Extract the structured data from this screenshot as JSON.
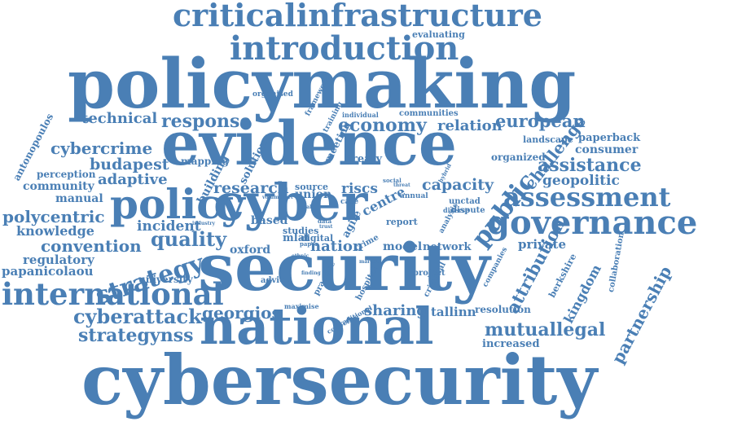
{
  "colors": {
    "word": "#4a7fb5",
    "background": "#ffffff"
  },
  "words": [
    "criticalinfrastructure",
    "introduction",
    "evaluating",
    "policymaking",
    "evidence",
    "security",
    "national",
    "cybersecurity",
    "cyber",
    "policy",
    "governance",
    "assessment",
    "international",
    "strategy",
    "cyberattack",
    "strategynss",
    "georgios",
    "economy",
    "european",
    "response",
    "technical",
    "cybercrime",
    "budapest",
    "adaptive",
    "community",
    "perception",
    "manual",
    "polycentric",
    "knowledge",
    "convention",
    "regulatory",
    "papanicolaou",
    "antonopoulos",
    "research",
    "capacity",
    "public",
    "challenge",
    "assistance",
    "geopolitic",
    "consumer",
    "paperback",
    "landscape",
    "organized",
    "relation",
    "communities",
    "individual",
    "organised",
    "framework",
    "mapping",
    "building",
    "solution",
    "meeting",
    "training",
    "treaty",
    "incident",
    "quality",
    "based",
    "oxford",
    "nation",
    "centre",
    "riscs",
    "source",
    "union",
    "studies",
    "mlat",
    "agile",
    "digital",
    "model",
    "report",
    "network",
    "sharing",
    "tallinn",
    "resolution",
    "mutuallegal",
    "increased",
    "attribution",
    "kingdom",
    "partnership",
    "berkshire",
    "collaboration",
    "private",
    "university",
    "advice",
    "finding",
    "practice",
    "hospital",
    "project",
    "criminal",
    "companies",
    "collective",
    "traditional",
    "maximise",
    "crime",
    "market",
    "annual",
    "unctad",
    "dispute",
    "diverse",
    "analysis",
    "hybrid",
    "social",
    "threat",
    "case",
    "legal",
    "data",
    "trust",
    "industry",
    "ethnic",
    "paper",
    "volume",
    "short"
  ]
}
